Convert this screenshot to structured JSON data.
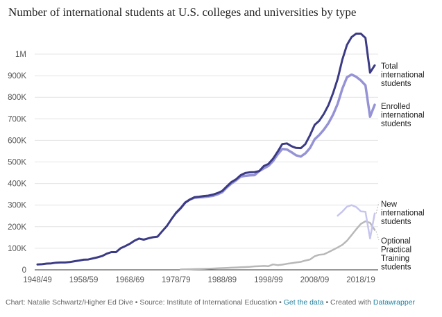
{
  "chart_data": {
    "type": "line",
    "title": "Number of international students at U.S. colleges and universities by type",
    "xlabel": "",
    "ylabel": "",
    "ylim": [
      0,
      1100000
    ],
    "grid": true,
    "x_tick_labels": [
      "1948/49",
      "1958/59",
      "1968/69",
      "1978/79",
      "1988/89",
      "1998/99",
      "2008/09",
      "2018/19"
    ],
    "y_tick_labels": [
      "0",
      "100K",
      "200K",
      "300K",
      "400K",
      "500K",
      "600K",
      "700K",
      "800K",
      "900K",
      "1M"
    ],
    "series": [
      {
        "name": "Total international students",
        "color": "#3b3a85",
        "x": [
          1948,
          1949,
          1950,
          1951,
          1952,
          1953,
          1954,
          1955,
          1956,
          1957,
          1958,
          1959,
          1960,
          1961,
          1962,
          1963,
          1964,
          1965,
          1966,
          1967,
          1968,
          1969,
          1970,
          1971,
          1972,
          1973,
          1974,
          1975,
          1976,
          1977,
          1978,
          1979,
          1980,
          1981,
          1982,
          1983,
          1984,
          1985,
          1986,
          1987,
          1988,
          1989,
          1990,
          1991,
          1992,
          1993,
          1994,
          1995,
          1996,
          1997,
          1998,
          1999,
          2000,
          2001,
          2002,
          2003,
          2004,
          2005,
          2006,
          2007,
          2008,
          2009,
          2010,
          2011,
          2012,
          2013,
          2014,
          2015,
          2016,
          2017,
          2018,
          2019,
          2020,
          2021
        ],
        "values": [
          25000,
          26000,
          29000,
          30000,
          33000,
          34000,
          34000,
          36000,
          40000,
          43000,
          47000,
          48000,
          53000,
          58000,
          64000,
          75000,
          82000,
          82000,
          100000,
          110000,
          121000,
          135000,
          145000,
          140000,
          146000,
          151000,
          154000,
          179000,
          203000,
          235000,
          264000,
          286000,
          312000,
          326000,
          337000,
          339000,
          342000,
          344000,
          349000,
          356000,
          366000,
          387000,
          407000,
          420000,
          439000,
          449000,
          452000,
          453000,
          458000,
          481000,
          491000,
          515000,
          548000,
          583000,
          586000,
          573000,
          565000,
          564000,
          583000,
          624000,
          672000,
          691000,
          723000,
          764000,
          820000,
          886000,
          975000,
          1043000,
          1079000,
          1095000,
          1095000,
          1075000,
          914000,
          948000
        ]
      },
      {
        "name": "Enrolled international students",
        "color": "#9593d6",
        "x": [
          1978,
          1979,
          1980,
          1981,
          1982,
          1983,
          1984,
          1985,
          1986,
          1987,
          1988,
          1989,
          1990,
          1991,
          1992,
          1993,
          1994,
          1995,
          1996,
          1997,
          1998,
          1999,
          2000,
          2001,
          2002,
          2003,
          2004,
          2005,
          2006,
          2007,
          2008,
          2009,
          2010,
          2011,
          2012,
          2013,
          2014,
          2015,
          2016,
          2017,
          2018,
          2019,
          2020,
          2021
        ],
        "values": [
          264000,
          286000,
          312000,
          326000,
          334000,
          336000,
          337000,
          340000,
          343000,
          350000,
          360000,
          382000,
          400000,
          415000,
          432000,
          436000,
          438000,
          439000,
          458000,
          470000,
          482000,
          504000,
          535000,
          560000,
          558000,
          545000,
          531000,
          525000,
          540000,
          565000,
          605000,
          625000,
          650000,
          680000,
          720000,
          770000,
          840000,
          893000,
          905000,
          895000,
          878000,
          855000,
          710000,
          765000
        ]
      },
      {
        "name": "New international students",
        "color": "#c6c5ee",
        "x": [
          2013,
          2014,
          2015,
          2016,
          2017,
          2018,
          2019,
          2020,
          2021
        ],
        "values": [
          251000,
          270000,
          293000,
          300000,
          291000,
          271000,
          269000,
          145000,
          261000
        ]
      },
      {
        "name": "Optional Practical Training students",
        "color": "#b8b8b8",
        "x": [
          1979,
          1980,
          1981,
          1982,
          1983,
          1984,
          1985,
          1986,
          1987,
          1988,
          1989,
          1990,
          1991,
          1992,
          1993,
          1994,
          1995,
          1996,
          1997,
          1998,
          1999,
          2000,
          2001,
          2002,
          2003,
          2004,
          2005,
          2006,
          2007,
          2008,
          2009,
          2010,
          2011,
          2012,
          2013,
          2014,
          2015,
          2016,
          2017,
          2018,
          2019,
          2020,
          2021
        ],
        "values": [
          2000,
          2500,
          3000,
          3500,
          4000,
          4500,
          5000,
          6000,
          7000,
          8000,
          9000,
          10000,
          11000,
          12000,
          13000,
          14000,
          16000,
          17000,
          18000,
          17000,
          25000,
          22000,
          24000,
          28000,
          31000,
          34000,
          37000,
          43000,
          48000,
          63000,
          70000,
          72000,
          82000,
          93000,
          104000,
          116000,
          135000,
          161000,
          188000,
          213000,
          225000,
          218000,
          185000
        ]
      }
    ]
  },
  "footer": {
    "credit": "Chart: Natalie Schwartz/Higher Ed Dive • Source: Institute of International Education •",
    "get_data_link": "Get the data",
    "created_with": "• Created with",
    "datawrapper_link": "Datawrapper"
  }
}
